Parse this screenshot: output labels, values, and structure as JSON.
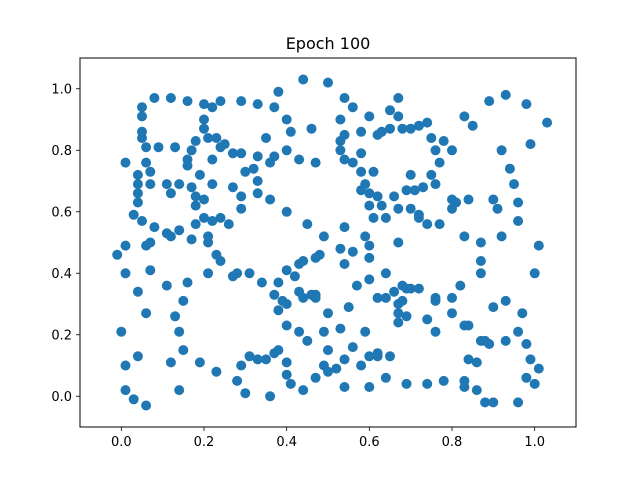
{
  "chart_data": {
    "type": "scatter",
    "title": "Epoch 100",
    "xlabel": "",
    "ylabel": "",
    "xlim": [
      -0.1,
      1.1
    ],
    "ylim": [
      -0.1,
      1.1
    ],
    "grid": false,
    "marker_color": "#1f77b4",
    "x_ticks": [
      0.0,
      0.2,
      0.4,
      0.6,
      0.8,
      1.0
    ],
    "y_ticks": [
      0.0,
      0.2,
      0.4,
      0.6,
      0.8,
      1.0
    ],
    "x_tick_labels": [
      "0.0",
      "0.2",
      "0.4",
      "0.6",
      "0.8",
      "1.0"
    ],
    "y_tick_labels": [
      "0.0",
      "0.2",
      "0.4",
      "0.6",
      "0.8",
      "1.0"
    ],
    "points": [
      [
        0.44,
        1.03
      ],
      [
        0.5,
        1.02
      ],
      [
        0.38,
        0.99
      ],
      [
        0.93,
        0.98
      ],
      [
        0.08,
        0.97
      ],
      [
        0.12,
        0.97
      ],
      [
        0.16,
        0.96
      ],
      [
        0.2,
        0.95
      ],
      [
        0.24,
        0.96
      ],
      [
        0.29,
        0.96
      ],
      [
        0.33,
        0.95
      ],
      [
        0.54,
        0.97
      ],
      [
        0.67,
        0.97
      ],
      [
        0.89,
        0.96
      ],
      [
        0.98,
        0.95
      ],
      [
        0.05,
        0.94
      ],
      [
        0.22,
        0.94
      ],
      [
        0.37,
        0.94
      ],
      [
        0.56,
        0.94
      ],
      [
        0.65,
        0.93
      ],
      [
        0.05,
        0.91
      ],
      [
        0.2,
        0.9
      ],
      [
        0.4,
        0.9
      ],
      [
        0.53,
        0.9
      ],
      [
        0.6,
        0.91
      ],
      [
        0.67,
        0.91
      ],
      [
        0.72,
        0.88
      ],
      [
        0.74,
        0.89
      ],
      [
        0.83,
        0.91
      ],
      [
        0.85,
        0.88
      ],
      [
        1.03,
        0.89
      ],
      [
        0.05,
        0.86
      ],
      [
        0.2,
        0.87
      ],
      [
        0.41,
        0.86
      ],
      [
        0.46,
        0.87
      ],
      [
        0.54,
        0.85
      ],
      [
        0.58,
        0.86
      ],
      [
        0.63,
        0.86
      ],
      [
        0.65,
        0.87
      ],
      [
        0.68,
        0.87
      ],
      [
        0.7,
        0.87
      ],
      [
        0.75,
        0.84
      ],
      [
        0.05,
        0.84
      ],
      [
        0.21,
        0.84
      ],
      [
        0.23,
        0.84
      ],
      [
        0.25,
        0.82
      ],
      [
        0.18,
        0.83
      ],
      [
        0.35,
        0.84
      ],
      [
        0.53,
        0.83
      ],
      [
        0.62,
        0.85
      ],
      [
        0.78,
        0.83
      ],
      [
        0.06,
        0.81
      ],
      [
        0.09,
        0.81
      ],
      [
        0.13,
        0.81
      ],
      [
        0.17,
        0.8
      ],
      [
        0.24,
        0.81
      ],
      [
        0.27,
        0.79
      ],
      [
        0.29,
        0.79
      ],
      [
        0.33,
        0.78
      ],
      [
        0.37,
        0.78
      ],
      [
        0.4,
        0.8
      ],
      [
        0.53,
        0.8
      ],
      [
        0.58,
        0.79
      ],
      [
        0.76,
        0.8
      ],
      [
        0.8,
        0.8
      ],
      [
        0.92,
        0.8
      ],
      [
        0.99,
        0.82
      ],
      [
        0.01,
        0.76
      ],
      [
        0.06,
        0.76
      ],
      [
        0.16,
        0.77
      ],
      [
        0.22,
        0.77
      ],
      [
        0.36,
        0.76
      ],
      [
        0.43,
        0.77
      ],
      [
        0.47,
        0.76
      ],
      [
        0.54,
        0.77
      ],
      [
        0.56,
        0.76
      ],
      [
        0.77,
        0.76
      ],
      [
        0.94,
        0.74
      ],
      [
        0.04,
        0.72
      ],
      [
        0.07,
        0.73
      ],
      [
        0.16,
        0.75
      ],
      [
        0.19,
        0.72
      ],
      [
        0.3,
        0.73
      ],
      [
        0.32,
        0.74
      ],
      [
        0.58,
        0.73
      ],
      [
        0.61,
        0.73
      ],
      [
        0.7,
        0.72
      ],
      [
        0.75,
        0.72
      ],
      [
        0.95,
        0.69
      ],
      [
        0.04,
        0.69
      ],
      [
        0.07,
        0.69
      ],
      [
        0.11,
        0.69
      ],
      [
        0.14,
        0.69
      ],
      [
        0.17,
        0.68
      ],
      [
        0.22,
        0.69
      ],
      [
        0.27,
        0.68
      ],
      [
        0.33,
        0.7
      ],
      [
        0.58,
        0.67
      ],
      [
        0.59,
        0.69
      ],
      [
        0.69,
        0.67
      ],
      [
        0.71,
        0.67
      ],
      [
        0.73,
        0.68
      ],
      [
        0.76,
        0.69
      ],
      [
        0.04,
        0.66
      ],
      [
        0.12,
        0.66
      ],
      [
        0.18,
        0.65
      ],
      [
        0.2,
        0.64
      ],
      [
        0.29,
        0.65
      ],
      [
        0.33,
        0.66
      ],
      [
        0.36,
        0.64
      ],
      [
        0.6,
        0.66
      ],
      [
        0.62,
        0.65
      ],
      [
        0.66,
        0.65
      ],
      [
        0.8,
        0.64
      ],
      [
        0.81,
        0.63
      ],
      [
        0.84,
        0.64
      ],
      [
        0.9,
        0.64
      ],
      [
        0.96,
        0.63
      ],
      [
        0.04,
        0.63
      ],
      [
        0.18,
        0.62
      ],
      [
        0.29,
        0.61
      ],
      [
        0.4,
        0.6
      ],
      [
        0.6,
        0.62
      ],
      [
        0.63,
        0.62
      ],
      [
        0.67,
        0.61
      ],
      [
        0.7,
        0.61
      ],
      [
        0.8,
        0.61
      ],
      [
        0.91,
        0.61
      ],
      [
        0.72,
        0.59
      ],
      [
        0.03,
        0.59
      ],
      [
        0.05,
        0.57
      ],
      [
        0.08,
        0.55
      ],
      [
        0.11,
        0.53
      ],
      [
        0.14,
        0.54
      ],
      [
        0.18,
        0.56
      ],
      [
        0.2,
        0.58
      ],
      [
        0.22,
        0.57
      ],
      [
        0.24,
        0.58
      ],
      [
        0.26,
        0.56
      ],
      [
        0.45,
        0.56
      ],
      [
        0.54,
        0.55
      ],
      [
        0.61,
        0.58
      ],
      [
        0.64,
        0.58
      ],
      [
        0.72,
        0.58
      ],
      [
        0.74,
        0.56
      ],
      [
        0.77,
        0.56
      ],
      [
        0.96,
        0.57
      ],
      [
        0.07,
        0.5
      ],
      [
        0.06,
        0.49
      ],
      [
        0.01,
        0.49
      ],
      [
        0.12,
        0.52
      ],
      [
        0.17,
        0.51
      ],
      [
        0.21,
        0.52
      ],
      [
        0.21,
        0.5
      ],
      [
        0.49,
        0.52
      ],
      [
        0.59,
        0.52
      ],
      [
        0.67,
        0.5
      ],
      [
        0.83,
        0.52
      ],
      [
        0.87,
        0.5
      ],
      [
        0.92,
        0.52
      ],
      [
        1.01,
        0.49
      ],
      [
        -0.01,
        0.46
      ],
      [
        0.23,
        0.46
      ],
      [
        0.24,
        0.44
      ],
      [
        0.43,
        0.43
      ],
      [
        0.44,
        0.44
      ],
      [
        0.47,
        0.45
      ],
      [
        0.48,
        0.46
      ],
      [
        0.53,
        0.48
      ],
      [
        0.56,
        0.47
      ],
      [
        0.6,
        0.49
      ],
      [
        0.6,
        0.45
      ],
      [
        0.87,
        0.44
      ],
      [
        0.01,
        0.4
      ],
      [
        0.07,
        0.41
      ],
      [
        0.21,
        0.4
      ],
      [
        0.27,
        0.39
      ],
      [
        0.28,
        0.4
      ],
      [
        0.31,
        0.4
      ],
      [
        0.4,
        0.41
      ],
      [
        0.42,
        0.39
      ],
      [
        0.54,
        0.43
      ],
      [
        0.64,
        0.4
      ],
      [
        0.87,
        0.4
      ],
      [
        1.0,
        0.4
      ],
      [
        0.11,
        0.36
      ],
      [
        0.16,
        0.37
      ],
      [
        0.34,
        0.37
      ],
      [
        0.38,
        0.37
      ],
      [
        0.43,
        0.34
      ],
      [
        0.44,
        0.32
      ],
      [
        0.46,
        0.33
      ],
      [
        0.47,
        0.33
      ],
      [
        0.47,
        0.32
      ],
      [
        0.57,
        0.36
      ],
      [
        0.6,
        0.38
      ],
      [
        0.66,
        0.34
      ],
      [
        0.68,
        0.36
      ],
      [
        0.69,
        0.35
      ],
      [
        0.7,
        0.35
      ],
      [
        0.72,
        0.35
      ],
      [
        0.76,
        0.32
      ],
      [
        0.82,
        0.36
      ],
      [
        0.04,
        0.34
      ],
      [
        0.15,
        0.31
      ],
      [
        0.37,
        0.33
      ],
      [
        0.39,
        0.31
      ],
      [
        0.4,
        0.3
      ],
      [
        0.55,
        0.29
      ],
      [
        0.62,
        0.32
      ],
      [
        0.64,
        0.32
      ],
      [
        0.67,
        0.3
      ],
      [
        0.68,
        0.31
      ],
      [
        0.76,
        0.31
      ],
      [
        0.8,
        0.32
      ],
      [
        0.9,
        0.29
      ],
      [
        0.93,
        0.31
      ],
      [
        0.06,
        0.27
      ],
      [
        0.13,
        0.26
      ],
      [
        0.38,
        0.28
      ],
      [
        0.5,
        0.27
      ],
      [
        0.67,
        0.27
      ],
      [
        0.69,
        0.26
      ],
      [
        0.74,
        0.25
      ],
      [
        0.8,
        0.27
      ],
      [
        0.83,
        0.23
      ],
      [
        0.84,
        0.23
      ],
      [
        0.97,
        0.27
      ],
      [
        -0.0,
        0.21
      ],
      [
        0.14,
        0.21
      ],
      [
        0.4,
        0.23
      ],
      [
        0.43,
        0.21
      ],
      [
        0.49,
        0.21
      ],
      [
        0.53,
        0.22
      ],
      [
        0.59,
        0.21
      ],
      [
        0.67,
        0.24
      ],
      [
        0.76,
        0.21
      ],
      [
        0.87,
        0.18
      ],
      [
        0.88,
        0.18
      ],
      [
        0.89,
        0.17
      ],
      [
        0.93,
        0.18
      ],
      [
        0.96,
        0.21
      ],
      [
        0.98,
        0.17
      ],
      [
        0.15,
        0.15
      ],
      [
        0.31,
        0.13
      ],
      [
        0.37,
        0.14
      ],
      [
        0.38,
        0.15
      ],
      [
        0.45,
        0.18
      ],
      [
        0.5,
        0.15
      ],
      [
        0.56,
        0.16
      ],
      [
        0.6,
        0.13
      ],
      [
        0.62,
        0.14
      ],
      [
        0.62,
        0.13
      ],
      [
        0.65,
        0.13
      ],
      [
        0.84,
        0.12
      ],
      [
        0.99,
        0.12
      ],
      [
        0.01,
        0.1
      ],
      [
        0.04,
        0.13
      ],
      [
        0.12,
        0.11
      ],
      [
        0.19,
        0.11
      ],
      [
        0.29,
        0.1
      ],
      [
        0.33,
        0.12
      ],
      [
        0.35,
        0.12
      ],
      [
        0.4,
        0.11
      ],
      [
        0.49,
        0.1
      ],
      [
        0.54,
        0.12
      ],
      [
        0.58,
        0.1
      ],
      [
        0.86,
        0.11
      ],
      [
        1.01,
        0.09
      ],
      [
        0.23,
        0.08
      ],
      [
        0.4,
        0.07
      ],
      [
        0.47,
        0.06
      ],
      [
        0.5,
        0.08
      ],
      [
        0.52,
        0.09
      ],
      [
        0.64,
        0.06
      ],
      [
        0.78,
        0.05
      ],
      [
        0.83,
        0.05
      ],
      [
        0.98,
        0.06
      ],
      [
        0.01,
        0.02
      ],
      [
        0.14,
        0.02
      ],
      [
        0.28,
        0.05
      ],
      [
        0.3,
        0.01
      ],
      [
        0.36,
        -0.0
      ],
      [
        0.41,
        0.04
      ],
      [
        0.44,
        0.02
      ],
      [
        0.54,
        0.03
      ],
      [
        0.6,
        0.03
      ],
      [
        0.69,
        0.04
      ],
      [
        0.74,
        0.04
      ],
      [
        0.83,
        0.03
      ],
      [
        0.86,
        0.02
      ],
      [
        0.88,
        -0.02
      ],
      [
        0.9,
        -0.02
      ],
      [
        0.96,
        -0.02
      ],
      [
        1.0,
        0.04
      ],
      [
        0.03,
        -0.01
      ],
      [
        0.06,
        -0.03
      ]
    ]
  }
}
